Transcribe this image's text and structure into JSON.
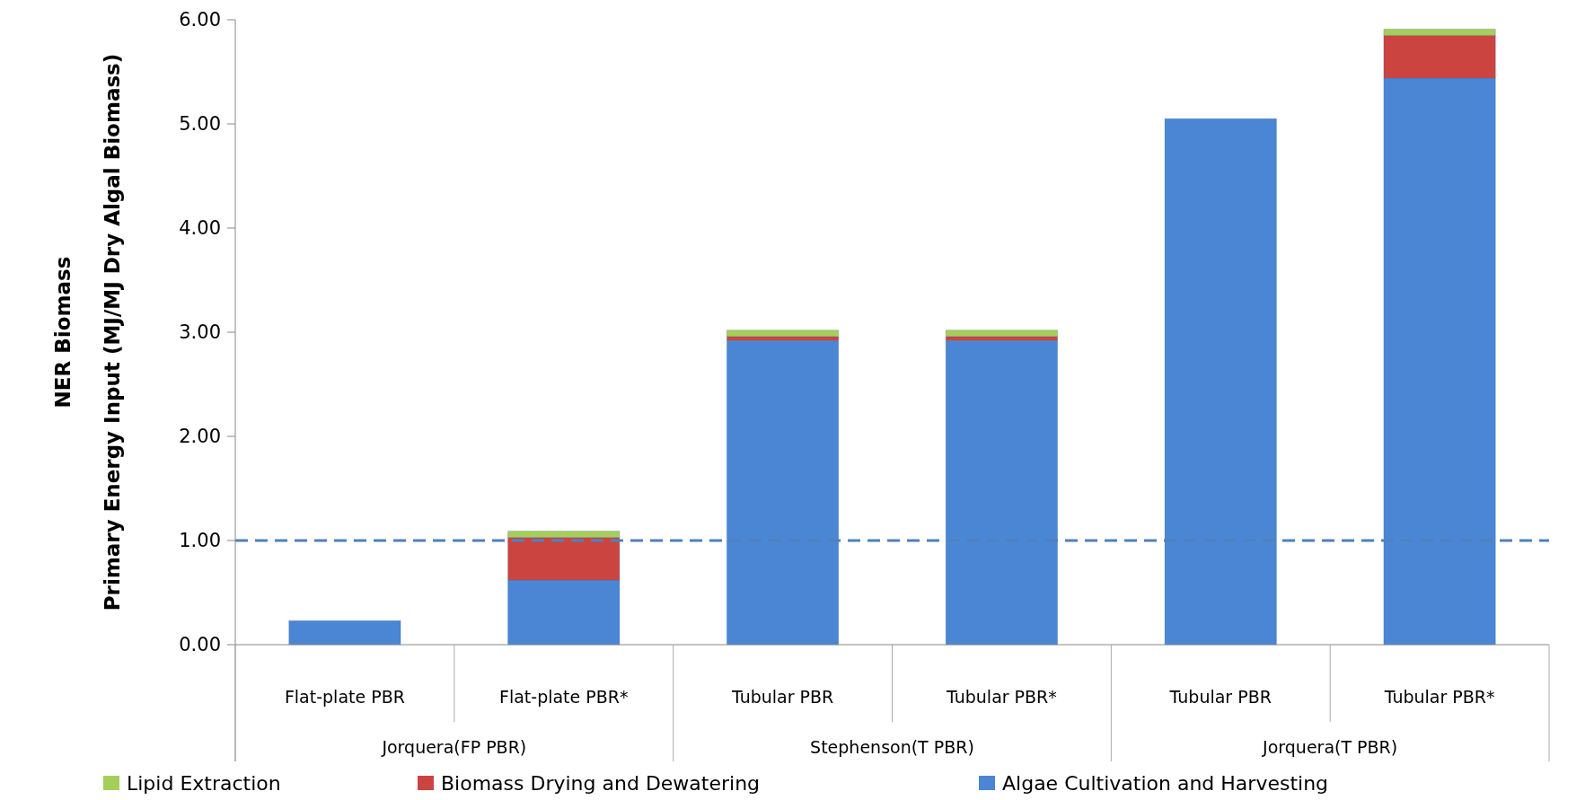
{
  "chart_data": {
    "type": "bar",
    "stacked": true,
    "ylabel": "NER Biomass\nPrimary Energy Input (MJ/MJ Dry Algal Biomass)",
    "categories": [
      "Flat-plate PBR",
      "Flat-plate PBR*",
      "Tubular PBR",
      "Tubular PBR*",
      "Tubular PBR",
      "Tubular PBR*"
    ],
    "series": [
      {
        "name": "Algae Cultivation and Harvesting",
        "color": "#4a86d4",
        "values": [
          0.23,
          0.62,
          2.92,
          2.92,
          5.05,
          5.44
        ]
      },
      {
        "name": "Biomass Drying and Dewatering",
        "color": "#cc4440",
        "values": [
          null,
          0.41,
          0.04,
          0.04,
          null,
          0.41
        ]
      },
      {
        "name": "Lipid Extraction",
        "color": "#a6cf5a",
        "values": [
          null,
          0.06,
          0.06,
          0.06,
          null,
          0.06
        ]
      }
    ],
    "annotations": [
      "Jorquera(FP PBR)",
      "Stephenson(T PBR)",
      "Jorquera(T PBR)"
    ],
    "ref_lines": [
      {
        "axis": "y",
        "value": 1,
        "color": "#4f81bd",
        "line_style": "dashed"
      }
    ],
    "ylim": [
      0,
      6
    ],
    "yticks": [
      {
        "value": 0,
        "label": "0.00"
      },
      {
        "value": 1,
        "label": "1.00"
      },
      {
        "value": 2,
        "label": "2.00"
      },
      {
        "value": 3,
        "label": "3.00"
      },
      {
        "value": 4,
        "label": "4.00"
      },
      {
        "value": 5,
        "label": "5.00"
      },
      {
        "value": 6,
        "label": "6.00"
      }
    ],
    "legend": "bottom",
    "grid": false
  }
}
